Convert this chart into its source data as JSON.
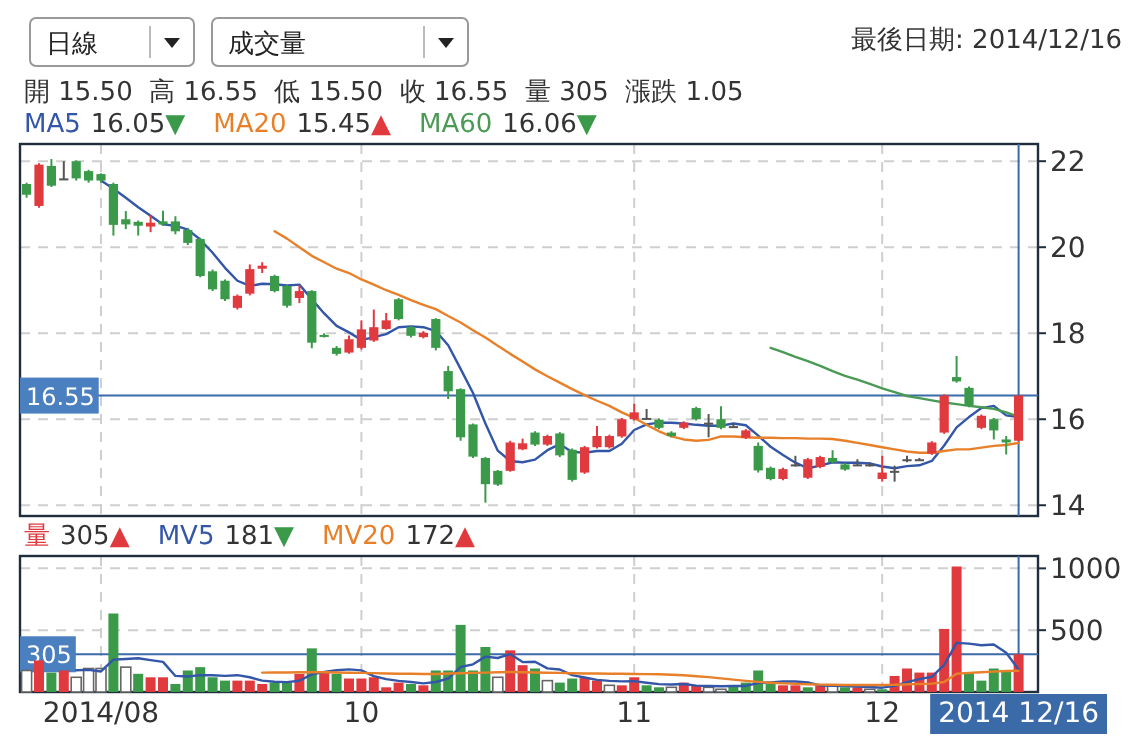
{
  "chart_data": [
    {
      "type": "candlestick",
      "title": "最後日期: 2014/12/16",
      "subtitle": "開 15.50  高 16.55  低 15.50  收 16.55  量 305  漲跌 1.05",
      "annotations": [
        "日線",
        "成交量",
        "16.05▼",
        "15.45▲",
        "16.06▼"
      ],
      "categories": [
        null,
        null,
        null,
        null,
        null,
        null,
        "2014/08",
        null,
        null,
        null,
        null,
        null,
        null,
        null,
        null,
        null,
        null,
        null,
        null,
        null,
        null,
        null,
        null,
        null,
        null,
        null,
        null,
        "10",
        null,
        null,
        null,
        null,
        null,
        null,
        null,
        null,
        null,
        null,
        null,
        null,
        null,
        null,
        null,
        null,
        null,
        null,
        null,
        null,
        null,
        "11",
        null,
        null,
        null,
        null,
        null,
        null,
        null,
        null,
        null,
        null,
        null,
        null,
        null,
        null,
        null,
        null,
        null,
        null,
        null,
        "12",
        null,
        null,
        null,
        null,
        null,
        null,
        null,
        null,
        null,
        null,
        "2014 12/16"
      ],
      "ohlc": [
        [
          21.47,
          21.5,
          21.15,
          21.22
        ],
        [
          20.96,
          21.95,
          20.92,
          21.92
        ],
        [
          21.89,
          22.05,
          21.4,
          21.43
        ],
        [
          21.6,
          22.0,
          21.58,
          21.6
        ],
        [
          22.0,
          22.02,
          21.55,
          21.6
        ],
        [
          21.77,
          21.8,
          21.5,
          21.55
        ],
        [
          21.7,
          21.72,
          21.5,
          21.55
        ],
        [
          21.47,
          21.5,
          20.27,
          20.52
        ],
        [
          20.65,
          20.84,
          20.42,
          20.53
        ],
        [
          20.59,
          20.62,
          20.27,
          20.5
        ],
        [
          20.48,
          20.75,
          20.35,
          20.57
        ],
        [
          20.6,
          20.85,
          20.5,
          20.53
        ],
        [
          20.6,
          20.72,
          20.3,
          20.37
        ],
        [
          20.4,
          20.45,
          20.05,
          20.1
        ],
        [
          20.19,
          20.22,
          19.3,
          19.33
        ],
        [
          19.44,
          19.48,
          18.98,
          19.02
        ],
        [
          19.22,
          19.25,
          18.75,
          18.79
        ],
        [
          18.59,
          18.9,
          18.55,
          18.87
        ],
        [
          18.92,
          19.6,
          18.88,
          19.49
        ],
        [
          19.5,
          19.65,
          19.4,
          19.57
        ],
        [
          19.33,
          19.36,
          18.95,
          18.98
        ],
        [
          19.1,
          19.12,
          18.6,
          18.64
        ],
        [
          18.82,
          19.12,
          18.7,
          18.98
        ],
        [
          18.98,
          19.0,
          17.65,
          17.78
        ],
        [
          17.96,
          18.0,
          17.9,
          17.94
        ],
        [
          17.66,
          17.7,
          17.48,
          17.52
        ],
        [
          17.55,
          17.95,
          17.52,
          17.86
        ],
        [
          17.66,
          18.3,
          17.62,
          18.09
        ],
        [
          17.83,
          18.55,
          17.8,
          18.14
        ],
        [
          18.1,
          18.47,
          18.08,
          18.3
        ],
        [
          18.79,
          18.82,
          18.3,
          18.33
        ],
        [
          18.14,
          18.18,
          17.9,
          17.94
        ],
        [
          17.91,
          18.05,
          17.88,
          18.01
        ],
        [
          18.33,
          18.35,
          17.6,
          17.66
        ],
        [
          17.12,
          17.24,
          16.47,
          16.65
        ],
        [
          16.7,
          16.72,
          15.5,
          15.58
        ],
        [
          15.88,
          15.9,
          15.1,
          15.13
        ],
        [
          15.1,
          15.12,
          14.06,
          14.49
        ],
        [
          14.8,
          14.82,
          14.45,
          14.48
        ],
        [
          14.8,
          15.5,
          14.78,
          15.46
        ],
        [
          15.3,
          15.55,
          15.28,
          15.44
        ],
        [
          15.69,
          15.72,
          15.38,
          15.41
        ],
        [
          15.41,
          15.64,
          15.38,
          15.61
        ],
        [
          15.67,
          15.7,
          15.12,
          15.16
        ],
        [
          15.29,
          15.32,
          14.55,
          14.59
        ],
        [
          14.76,
          15.38,
          14.73,
          15.35
        ],
        [
          15.35,
          15.84,
          15.32,
          15.61
        ],
        [
          15.35,
          15.64,
          15.32,
          15.61
        ],
        [
          15.6,
          16.03,
          15.57,
          16.0
        ],
        [
          16.0,
          16.36,
          15.97,
          16.16
        ],
        [
          16.03,
          16.24,
          16.0,
          16.03
        ],
        [
          15.99,
          16.02,
          15.77,
          15.8
        ],
        [
          15.69,
          15.72,
          15.58,
          15.61
        ],
        [
          15.8,
          15.95,
          15.77,
          15.92
        ],
        [
          16.26,
          16.29,
          15.97,
          16.0
        ],
        [
          15.92,
          16.12,
          15.58,
          15.92
        ],
        [
          16.0,
          16.3,
          15.77,
          15.8
        ],
        [
          15.84,
          15.9,
          15.8,
          15.84
        ],
        [
          15.57,
          15.77,
          15.54,
          15.74
        ],
        [
          15.38,
          15.46,
          14.76,
          14.81
        ],
        [
          14.87,
          14.9,
          14.58,
          14.61
        ],
        [
          14.61,
          14.87,
          14.58,
          14.84
        ],
        [
          14.95,
          15.15,
          14.9,
          14.95
        ],
        [
          14.64,
          15.1,
          14.61,
          15.07
        ],
        [
          14.89,
          15.15,
          14.86,
          15.12
        ],
        [
          15.1,
          15.28,
          14.97,
          15.0
        ],
        [
          14.95,
          14.98,
          14.8,
          14.83
        ],
        [
          14.95,
          15.07,
          14.92,
          14.95
        ],
        [
          14.95,
          15.0,
          14.9,
          14.95
        ],
        [
          14.61,
          15.15,
          14.55,
          14.76
        ],
        [
          14.8,
          14.92,
          14.55,
          14.8
        ],
        [
          15.07,
          15.15,
          15.0,
          15.07
        ],
        [
          15.07,
          15.1,
          15.04,
          15.07
        ],
        [
          15.2,
          15.49,
          15.17,
          15.46
        ],
        [
          15.69,
          16.58,
          15.66,
          16.55
        ],
        [
          16.98,
          17.47,
          16.85,
          16.88
        ],
        [
          16.73,
          16.76,
          16.28,
          16.31
        ],
        [
          15.8,
          16.11,
          15.77,
          16.08
        ],
        [
          16.0,
          16.03,
          15.53,
          15.74
        ],
        [
          15.53,
          15.61,
          15.18,
          15.46
        ],
        [
          15.5,
          16.55,
          15.5,
          16.55
        ]
      ],
      "series": [
        {
          "name": "MA5",
          "type": "line",
          "color": "#3356a8",
          "values": [
            null,
            null,
            null,
            null,
            null,
            null,
            21.55,
            21.36,
            21.15,
            20.93,
            20.73,
            20.53,
            20.5,
            20.41,
            20.18,
            19.87,
            19.52,
            19.22,
            19.1,
            19.15,
            19.14,
            19.11,
            19.13,
            18.79,
            18.46,
            18.17,
            18.02,
            17.84,
            17.91,
            17.98,
            18.14,
            18.16,
            18.14,
            18.05,
            17.72,
            17.17,
            16.61,
            15.9,
            15.27,
            15.03,
            15.0,
            15.06,
            15.28,
            15.42,
            15.24,
            15.22,
            15.26,
            15.26,
            15.43,
            15.75,
            15.88,
            15.92,
            15.92,
            15.9,
            15.87,
            15.85,
            15.85,
            15.9,
            15.86,
            15.62,
            15.36,
            15.17,
            14.99,
            14.86,
            14.92,
            15.0,
            14.99,
            14.99,
            14.97,
            14.9,
            14.86,
            14.91,
            14.93,
            15.03,
            15.39,
            15.81,
            16.05,
            16.26,
            16.31,
            16.09,
            16.05
          ]
        },
        {
          "name": "MA20",
          "type": "line",
          "color": "#e8802a",
          "values": [
            null,
            null,
            null,
            null,
            null,
            null,
            null,
            null,
            null,
            null,
            null,
            null,
            null,
            null,
            null,
            null,
            null,
            null,
            null,
            null,
            20.37,
            20.2,
            20.0,
            19.8,
            19.65,
            19.5,
            19.4,
            19.25,
            19.13,
            19.0,
            18.89,
            18.77,
            18.66,
            18.56,
            18.4,
            18.25,
            18.07,
            17.9,
            17.71,
            17.52,
            17.34,
            17.16,
            17.0,
            16.85,
            16.7,
            16.56,
            16.43,
            16.31,
            16.16,
            16.03,
            15.87,
            15.72,
            15.6,
            15.53,
            15.5,
            15.52,
            15.6,
            15.6,
            15.58,
            15.57,
            15.57,
            15.56,
            15.56,
            15.55,
            15.55,
            15.54,
            15.5,
            15.45,
            15.4,
            15.35,
            15.3,
            15.25,
            15.22,
            15.22,
            15.26,
            15.3,
            15.3,
            15.34,
            15.38,
            15.4,
            15.45
          ]
        },
        {
          "name": "MA60",
          "type": "line",
          "color": "#4a9a55",
          "values": [
            null,
            null,
            null,
            null,
            null,
            null,
            null,
            null,
            null,
            null,
            null,
            null,
            null,
            null,
            null,
            null,
            null,
            null,
            null,
            null,
            null,
            null,
            null,
            null,
            null,
            null,
            null,
            null,
            null,
            null,
            null,
            null,
            null,
            null,
            null,
            null,
            null,
            null,
            null,
            null,
            null,
            null,
            null,
            null,
            null,
            null,
            null,
            null,
            null,
            null,
            null,
            null,
            null,
            null,
            null,
            null,
            null,
            null,
            null,
            null,
            17.66,
            17.56,
            17.45,
            17.35,
            17.24,
            17.12,
            17.01,
            16.92,
            16.82,
            16.72,
            16.63,
            16.54,
            16.49,
            16.44,
            16.39,
            16.35,
            16.31,
            16.28,
            16.24,
            16.16,
            16.06
          ]
        }
      ],
      "ylim": [
        13.75,
        22.4
      ],
      "yticks": [
        14,
        16,
        18,
        20,
        22
      ],
      "grid": true,
      "tick_labels": "y",
      "legend": "top left",
      "ref_lines": [
        {
          "axis": "y",
          "value": 16.55,
          "label": "16.55"
        },
        {
          "axis": "x",
          "value": "2014 12/16"
        }
      ]
    },
    {
      "type": "bar",
      "annotations": [
        "305▲",
        "181▼",
        "172▲"
      ],
      "categories": [
        null,
        null,
        null,
        null,
        null,
        null,
        "2014/08",
        null,
        null,
        null,
        null,
        null,
        null,
        null,
        null,
        null,
        null,
        null,
        null,
        null,
        null,
        null,
        null,
        null,
        null,
        null,
        null,
        "10",
        null,
        null,
        null,
        null,
        null,
        null,
        null,
        null,
        null,
        null,
        null,
        null,
        null,
        null,
        null,
        null,
        null,
        null,
        null,
        null,
        null,
        "11",
        null,
        null,
        null,
        null,
        null,
        null,
        null,
        null,
        null,
        null,
        null,
        null,
        null,
        null,
        null,
        null,
        null,
        null,
        null,
        "12",
        null,
        null,
        null,
        null,
        null,
        null,
        null,
        null,
        null,
        null,
        "2014 12/16"
      ],
      "series": [
        {
          "name": "量",
          "type": "bar",
          "values": [
            174,
            255,
            157,
            174,
            119,
            190,
            190,
            635,
            201,
            147,
            119,
            119,
            65,
            174,
            201,
            119,
            92,
            92,
            92,
            65,
            76,
            76,
            147,
            353,
            157,
            147,
            109,
            109,
            119,
            38,
            76,
            65,
            54,
            174,
            174,
            543,
            174,
            364,
            119,
            337,
            217,
            190,
            92,
            76,
            109,
            119,
            92,
            54,
            54,
            119,
            54,
            38,
            38,
            76,
            54,
            38,
            22,
            54,
            76,
            174,
            65,
            54,
            54,
            38,
            54,
            54,
            38,
            38,
            22,
            22,
            130,
            190,
            157,
            157,
            510,
            1015,
            157,
            92,
            190,
            174,
            305
          ],
          "colors": [
            "#ffffff",
            "#e0393e",
            "#3a9a4a",
            "#e0393e",
            "#ffffff",
            "#ffffff",
            "#ffffff",
            "#3a9a4a",
            "#ffffff",
            "#3a9a4a",
            "#e0393e",
            "#e0393e",
            "#3a9a4a",
            "#3a9a4a",
            "#3a9a4a",
            "#3a9a4a",
            "#3a9a4a",
            "#e0393e",
            "#e0393e",
            "#e0393e",
            "#3a9a4a",
            "#3a9a4a",
            "#e0393e",
            "#3a9a4a",
            "#e0393e",
            "#3a9a4a",
            "#e0393e",
            "#e0393e",
            "#e0393e",
            "#e0393e",
            "#e0393e",
            "#3a9a4a",
            "#e0393e",
            "#3a9a4a",
            "#3a9a4a",
            "#3a9a4a",
            "#3a9a4a",
            "#3a9a4a",
            "#ffffff",
            "#e0393e",
            "#e0393e",
            "#3a9a4a",
            "#ffffff",
            "#3a9a4a",
            "#3a9a4a",
            "#e0393e",
            "#e0393e",
            "#ffffff",
            "#e0393e",
            "#e0393e",
            "#3a9a4a",
            "#3a9a4a",
            "#ffffff",
            "#e0393e",
            "#e0393e",
            "#ffffff",
            "#ffffff",
            "#3a9a4a",
            "#3a9a4a",
            "#3a9a4a",
            "#3a9a4a",
            "#e0393e",
            "#e0393e",
            "#3a9a4a",
            "#e0393e",
            "#ffffff",
            "#3a9a4a",
            "#e0393e",
            "#ffffff",
            "#3a9a4a",
            "#e0393e",
            "#e0393e",
            "#e0393e",
            "#e0393e",
            "#e0393e",
            "#e0393e",
            "#3a9a4a",
            "#3a9a4a",
            "#3a9a4a",
            "#3a9a4a",
            "#e0393e"
          ]
        },
        {
          "name": "MV5",
          "type": "line",
          "color": "#3356a8",
          "values": [
            null,
            null,
            null,
            null,
            176,
            179,
            166,
            262,
            267,
            273,
            258,
            244,
            130,
            125,
            136,
            136,
            130,
            136,
            119,
            92,
            83,
            80,
            91,
            143,
            162,
            176,
            183,
            175,
            128,
            104,
            90,
            81,
            70,
            81,
            109,
            202,
            224,
            286,
            275,
            307,
            242,
            245,
            191,
            182,
            137,
            117,
            98,
            90,
            86,
            88,
            75,
            64,
            61,
            65,
            52,
            49,
            46,
            49,
            49,
            73,
            78,
            85,
            85,
            77,
            53,
            51,
            48,
            44,
            41,
            35,
            50,
            80,
            104,
            123,
            220,
            397,
            391,
            378,
            384,
            317,
            181
          ]
        },
        {
          "name": "MV20",
          "type": "line",
          "color": "#e8802a",
          "values": [
            null,
            null,
            null,
            null,
            null,
            null,
            null,
            null,
            null,
            null,
            null,
            null,
            null,
            null,
            null,
            null,
            null,
            null,
            null,
            157,
            158,
            158,
            160,
            160,
            160,
            158,
            156,
            155,
            153,
            150,
            148,
            147,
            146,
            146,
            150,
            152,
            155,
            157,
            160,
            162,
            160,
            158,
            156,
            155,
            152,
            150,
            150,
            148,
            147,
            146,
            145,
            143,
            140,
            135,
            128,
            120,
            110,
            100,
            90,
            82,
            75,
            70,
            66,
            63,
            60,
            58,
            57,
            57,
            57,
            57,
            58,
            62,
            65,
            68,
            81,
            147,
            155,
            160,
            165,
            170,
            172
          ]
        }
      ],
      "ylim": [
        0,
        1100
      ],
      "yticks": [
        500,
        1000
      ],
      "grid": true,
      "legend": "top left",
      "ref_lines": [
        {
          "axis": "y",
          "value": 305,
          "label": "305"
        },
        {
          "axis": "x",
          "value": "2014 12/16"
        }
      ]
    }
  ]
}
